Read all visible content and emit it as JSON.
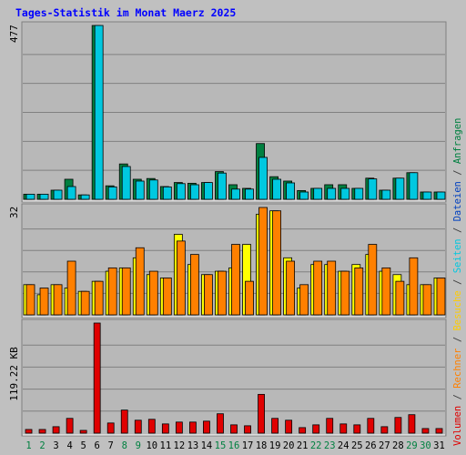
{
  "chart_data": {
    "type": "bar",
    "title": "Tages-Statistik im Monat Maerz 2025",
    "categories": [
      "1",
      "2",
      "3",
      "4",
      "5",
      "6",
      "7",
      "8",
      "9",
      "10",
      "11",
      "12",
      "13",
      "14",
      "15",
      "16",
      "17",
      "18",
      "19",
      "20",
      "21",
      "22",
      "23",
      "24",
      "25",
      "26",
      "27",
      "28",
      "29",
      "30",
      "31"
    ],
    "weekend_days": [
      "1",
      "2",
      "8",
      "9",
      "15",
      "16",
      "22",
      "23",
      "29",
      "30"
    ],
    "panels": [
      {
        "id": "top",
        "max_label": "477",
        "ylim": [
          0,
          477
        ],
        "series": [
          {
            "name": "Anfragen",
            "color": "#008040",
            "values": [
              14,
              14,
              25,
              55,
              12,
              477,
              37,
              97,
              55,
              57,
              35,
              46,
              44,
              46,
              76,
              40,
              30,
              153,
              62,
              50,
              24,
              30,
              40,
              40,
              30,
              58,
              25,
              58,
              73,
              20,
              20
            ]
          },
          {
            "name": "Dateien",
            "color": "#00c8e0",
            "values": [
              14,
              14,
              25,
              35,
              12,
              477,
              34,
              90,
              50,
              53,
              34,
              43,
              40,
              46,
              72,
              28,
              28,
              115,
              55,
              45,
              20,
              30,
              30,
              30,
              30,
              56,
              25,
              58,
              73,
              20,
              20
            ]
          }
        ]
      },
      {
        "id": "middle",
        "max_label": "32",
        "ylim": [
          0,
          32
        ],
        "series": [
          {
            "name": "Seiten",
            "color": "#ffff00",
            "values": [
              9,
              6,
              9,
              8,
              7,
              10,
              13,
              14,
              17,
              12,
              11,
              24,
              15,
              12,
              13,
              14,
              21,
              30,
              31,
              17,
              8,
              15,
              15,
              13,
              15,
              18,
              13,
              12,
              9,
              9,
              11
            ]
          },
          {
            "name": "Besuche",
            "color": "#ff8000",
            "values": [
              9,
              8,
              9,
              16,
              7,
              10,
              14,
              14,
              20,
              13,
              11,
              22,
              18,
              12,
              13,
              21,
              10,
              32,
              31,
              16,
              9,
              16,
              16,
              13,
              14,
              21,
              14,
              10,
              17,
              9,
              11
            ]
          }
        ]
      },
      {
        "id": "bottom",
        "max_label": "119.22 KB",
        "ylim": [
          0,
          119.22
        ],
        "series": [
          {
            "name": "Volumen",
            "color": "#e00000",
            "values": [
              4,
              4,
              7,
              16,
              3,
              119.22,
              11,
              25,
              14,
              15,
              10,
              12,
              12,
              13,
              21,
              9,
              8,
              42,
              16,
              14,
              6,
              9,
              16,
              10,
              9,
              16,
              7,
              17,
              20,
              5,
              5
            ]
          }
        ]
      }
    ],
    "legend_right": [
      {
        "label": "Volumen",
        "color": "#e00000"
      },
      {
        "label": "Rechner",
        "color": "#ff8000"
      },
      {
        "label": "Besuche",
        "color": "#ffcc00"
      },
      {
        "label": "Seiten",
        "color": "#00c8e0"
      },
      {
        "label": "Dateien",
        "color": "#0040c0"
      },
      {
        "label": "Anfragen",
        "color": "#008040"
      }
    ],
    "legend_separator": " / ",
    "colors": {
      "background": "#c0c0c0",
      "plot_bg": "#b8b8b8",
      "title": "#0000ff",
      "day_label": "#000000",
      "weekend_label": "#008040",
      "gridline": "#808080"
    }
  }
}
